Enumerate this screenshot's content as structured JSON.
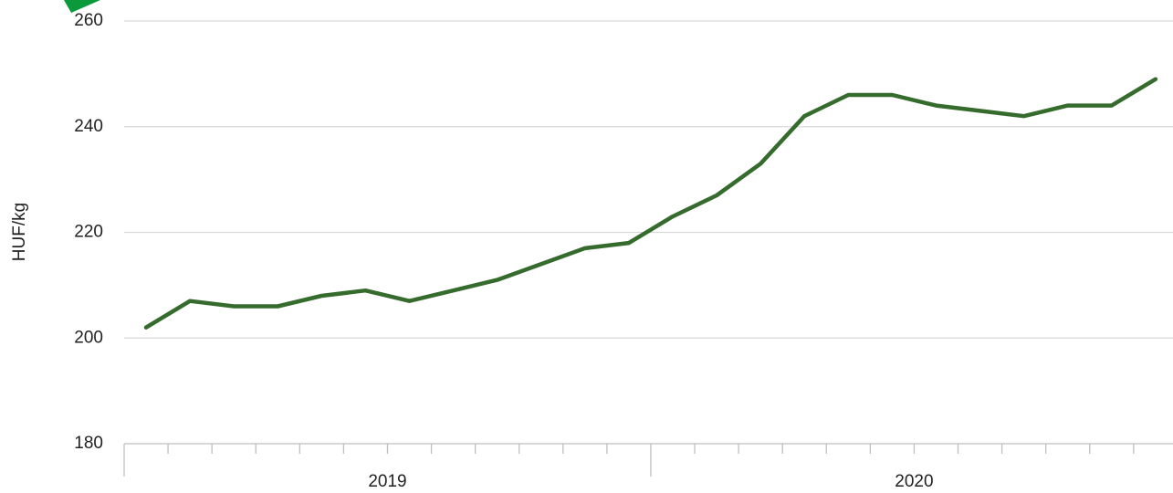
{
  "chart_data": {
    "type": "line",
    "y_label": "HUF/kg",
    "categories": [
      null,
      null,
      null,
      null,
      null,
      null,
      null,
      null,
      null,
      null,
      null,
      null,
      null,
      null,
      null,
      null,
      null,
      null,
      null,
      null,
      null,
      null,
      null,
      null
    ],
    "groups": [
      "2019",
      "2020"
    ],
    "series": [
      {
        "color": "#356b2c",
        "values": [
          202,
          207,
          206,
          206,
          208,
          209,
          207,
          209,
          211,
          214,
          217,
          218,
          223,
          227,
          233,
          242,
          246,
          246,
          244,
          243,
          242,
          244,
          244,
          249
        ]
      }
    ],
    "ylim": [
      180,
      260
    ],
    "yticks": [
      180,
      200,
      220,
      240,
      260
    ],
    "grid": true
  }
}
